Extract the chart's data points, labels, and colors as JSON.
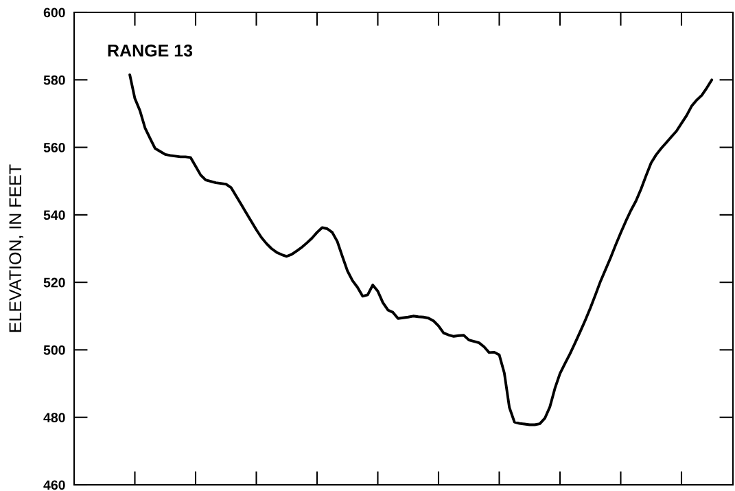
{
  "chart_data": {
    "type": "line",
    "title": "RANGE 13",
    "ylabel": "ELEVATION, IN FEET",
    "categories": [
      null,
      null,
      null,
      null,
      null,
      null,
      null,
      null,
      null,
      null,
      null,
      null,
      null,
      null,
      null,
      null,
      null,
      null,
      null,
      null,
      null,
      null,
      null,
      null,
      null,
      null,
      null,
      null,
      null,
      null,
      null,
      null,
      null,
      null,
      null,
      null,
      null,
      null,
      null,
      null,
      null,
      null,
      null,
      null,
      null,
      null,
      null,
      null,
      null,
      null,
      null,
      null,
      null,
      null,
      null,
      null,
      null,
      null,
      null,
      null,
      null,
      null,
      null,
      null,
      null,
      null,
      null,
      null,
      null,
      null,
      null,
      null,
      null,
      null,
      null,
      null,
      null,
      null,
      null,
      null,
      null,
      null,
      null,
      null,
      null,
      null,
      null,
      null,
      null,
      null,
      null,
      null,
      null,
      null,
      null,
      null,
      null,
      null,
      null,
      null,
      null,
      null,
      null,
      null,
      null,
      null,
      null,
      null,
      null,
      null,
      null,
      null,
      null,
      null,
      null,
      null
    ],
    "series": [
      {
        "color": "#000000",
        "values": [
          581.5,
          574.5,
          570.9,
          565.8,
          562.7,
          559.7,
          558.8,
          557.9,
          557.6,
          557.4,
          557.2,
          557.2,
          557.0,
          554.4,
          551.8,
          550.3,
          549.9,
          549.5,
          549.3,
          549.1,
          548.1,
          545.6,
          543.1,
          540.6,
          538.1,
          535.6,
          533.3,
          531.5,
          530.0,
          528.9,
          528.2,
          527.7,
          528.3,
          529.3,
          530.4,
          531.7,
          533.1,
          534.8,
          536.2,
          535.9,
          534.8,
          532.1,
          527.7,
          523.4,
          520.5,
          518.5,
          515.9,
          516.3,
          519.2,
          517.4,
          514.0,
          511.8,
          511.1,
          509.3,
          509.5,
          509.7,
          510.0,
          509.8,
          509.7,
          509.4,
          508.6,
          507.1,
          505.0,
          504.4,
          504.0,
          504.2,
          504.3,
          502.9,
          502.5,
          502.1,
          500.9,
          499.2,
          499.3,
          498.5,
          493.1,
          482.9,
          478.6,
          478.2,
          478.0,
          477.8,
          477.8,
          478.1,
          479.7,
          483.1,
          488.6,
          493.0,
          496.0,
          498.9,
          502.1,
          505.4,
          508.8,
          512.4,
          516.3,
          520.3,
          523.8,
          527.3,
          531.1,
          534.7,
          538.1,
          541.3,
          544.1,
          547.6,
          551.6,
          555.4,
          557.8,
          559.7,
          561.4,
          563.1,
          564.8,
          567.1,
          569.4,
          572.2,
          574.0,
          575.4,
          577.6,
          580.0
        ]
      }
    ],
    "ylim": [
      460,
      600
    ],
    "yticks": [
      460,
      480,
      500,
      520,
      540,
      560,
      580,
      600
    ],
    "grid": false,
    "tick_labels": "y",
    "marker": "none",
    "line_style": "solid"
  }
}
